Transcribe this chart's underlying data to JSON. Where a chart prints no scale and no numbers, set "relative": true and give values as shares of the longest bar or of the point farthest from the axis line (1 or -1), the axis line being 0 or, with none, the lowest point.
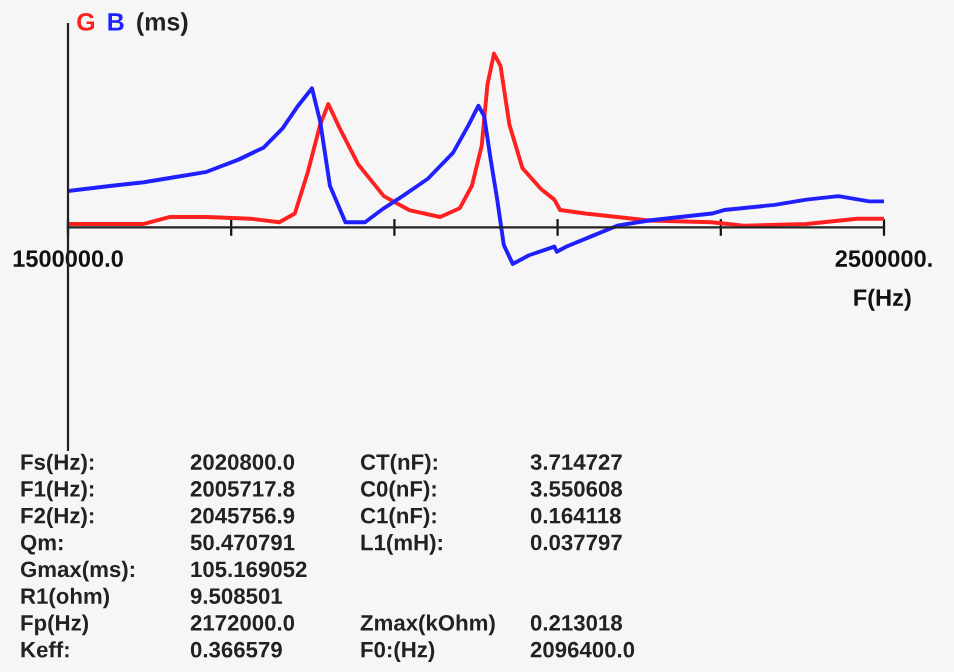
{
  "chart_data": {
    "type": "line",
    "relative": true,
    "ylabel": "(ms)",
    "xlabel": "F(Hz)",
    "xlim": [
      1500000,
      2500000
    ],
    "xticks": [
      {
        "value": 1500000,
        "label": "1500000.0"
      },
      {
        "value": 1700000,
        "label": null
      },
      {
        "value": 1900000,
        "label": null
      },
      {
        "value": 2100000,
        "label": null
      },
      {
        "value": 2300000,
        "label": null
      },
      {
        "value": 2500000,
        "label": "2500000."
      }
    ],
    "grid": false,
    "marker": "none",
    "line_style": "solid",
    "series": [
      {
        "name": "G",
        "color": "#ff2020",
        "x": [
          1500000,
          1593000,
          1624000,
          1670000,
          1724000,
          1759000,
          1778000,
          1794000,
          1809000,
          1819000,
          1833000,
          1856000,
          1887000,
          1918000,
          1956000,
          1980000,
          1995000,
          2007000,
          2014000,
          2022000,
          2030000,
          2041000,
          2057000,
          2080000,
          2096000,
          2103000,
          2134000,
          2173000,
          2212000,
          2289000,
          2328000,
          2405000,
          2467000,
          2500000
        ],
        "values": [
          0.02,
          0.02,
          0.06,
          0.06,
          0.05,
          0.03,
          0.08,
          0.32,
          0.59,
          0.71,
          0.57,
          0.36,
          0.18,
          0.1,
          0.06,
          0.11,
          0.24,
          0.47,
          0.82,
          1,
          0.93,
          0.59,
          0.34,
          0.22,
          0.16,
          0.1,
          0.08,
          0.06,
          0.04,
          0.03,
          0.01,
          0.02,
          0.05,
          0.05
        ]
      },
      {
        "name": "B",
        "color": "#2020ff",
        "x": [
          1500000,
          1554000,
          1593000,
          1632000,
          1670000,
          1709000,
          1740000,
          1763000,
          1782000,
          1799000,
          1809000,
          1821000,
          1840000,
          1864000,
          1887000,
          1910000,
          1941000,
          1972000,
          1991000,
          2003000,
          2010000,
          2018000,
          2026000,
          2034000,
          2045000,
          2065000,
          2096000,
          2099000,
          2111000,
          2142000,
          2173000,
          2212000,
          2250000,
          2289000,
          2304000,
          2366000,
          2405000,
          2444000,
          2482000,
          2500000
        ],
        "values": [
          0.21,
          0.24,
          0.26,
          0.29,
          0.32,
          0.39,
          0.46,
          0.57,
          0.7,
          0.8,
          0.61,
          0.24,
          0.03,
          0.03,
          0.11,
          0.18,
          0.28,
          0.43,
          0.59,
          0.7,
          0.64,
          0.39,
          0.16,
          -0.1,
          -0.21,
          -0.16,
          -0.11,
          -0.14,
          -0.11,
          -0.05,
          0.01,
          0.04,
          0.06,
          0.08,
          0.1,
          0.13,
          0.16,
          0.18,
          0.15,
          0.15
        ]
      }
    ],
    "annotations": [
      "Fs(Hz):",
      "2020800.0",
      "CT(nF):",
      "3.714727",
      "F1(Hz):",
      "2005717.8",
      "C0(nF):",
      "3.550608",
      "F2(Hz):",
      "2045756.9",
      "C1(nF):",
      "0.164118",
      "Qm:",
      "50.470791",
      "L1(mH):",
      "0.037797",
      "Gmax(ms):",
      "105.169052",
      "R1(ohm)",
      "9.508501",
      "Fp(Hz)",
      "2172000.0",
      "Zmax(kOhm)",
      "0.213018",
      "Keff:",
      "0.366579",
      "F0:(Hz)",
      "2096400.0"
    ]
  }
}
